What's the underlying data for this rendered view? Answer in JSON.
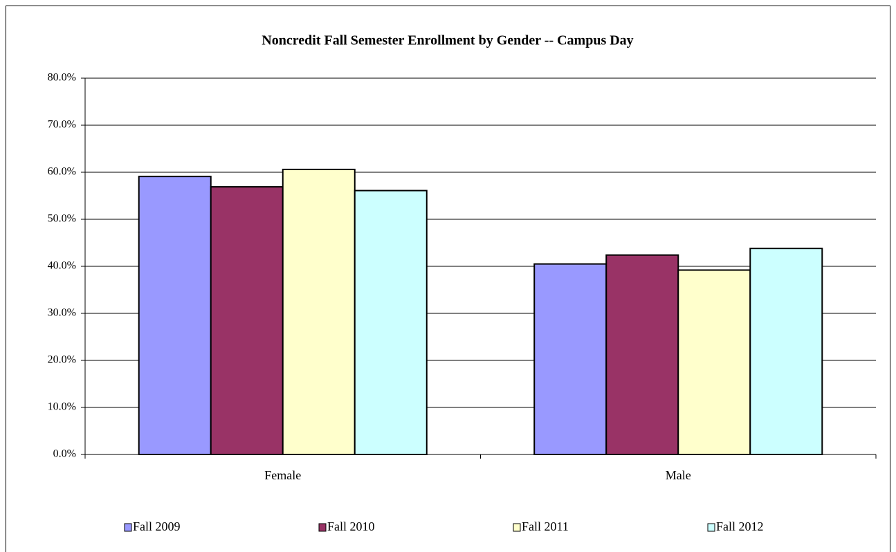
{
  "chart_data": {
    "type": "bar",
    "title": "Noncredit Fall Semester Enrollment by Gender -- Campus Day",
    "categories": [
      "Female",
      "Male"
    ],
    "series": [
      {
        "name": "Fall 2009",
        "color": "#9999ff",
        "values": [
          59.1,
          40.5
        ]
      },
      {
        "name": "Fall 2010",
        "color": "#993366",
        "values": [
          56.9,
          42.4
        ]
      },
      {
        "name": "Fall 2011",
        "color": "#ffffcc",
        "values": [
          60.6,
          39.2
        ]
      },
      {
        "name": "Fall 2012",
        "color": "#ccffff",
        "values": [
          56.1,
          43.8
        ]
      }
    ],
    "ylim": [
      0,
      80
    ],
    "yticks": [
      {
        "value": 0,
        "label": "0.0%"
      },
      {
        "value": 10,
        "label": "10.0%"
      },
      {
        "value": 20,
        "label": "20.0%"
      },
      {
        "value": 30,
        "label": "30.0%"
      },
      {
        "value": 40,
        "label": "40.0%"
      },
      {
        "value": 50,
        "label": "50.0%"
      },
      {
        "value": 60,
        "label": "60.0%"
      },
      {
        "value": 70,
        "label": "70.0%"
      },
      {
        "value": 80,
        "label": "80.0%"
      }
    ],
    "grid": true,
    "legend": "bottom"
  }
}
